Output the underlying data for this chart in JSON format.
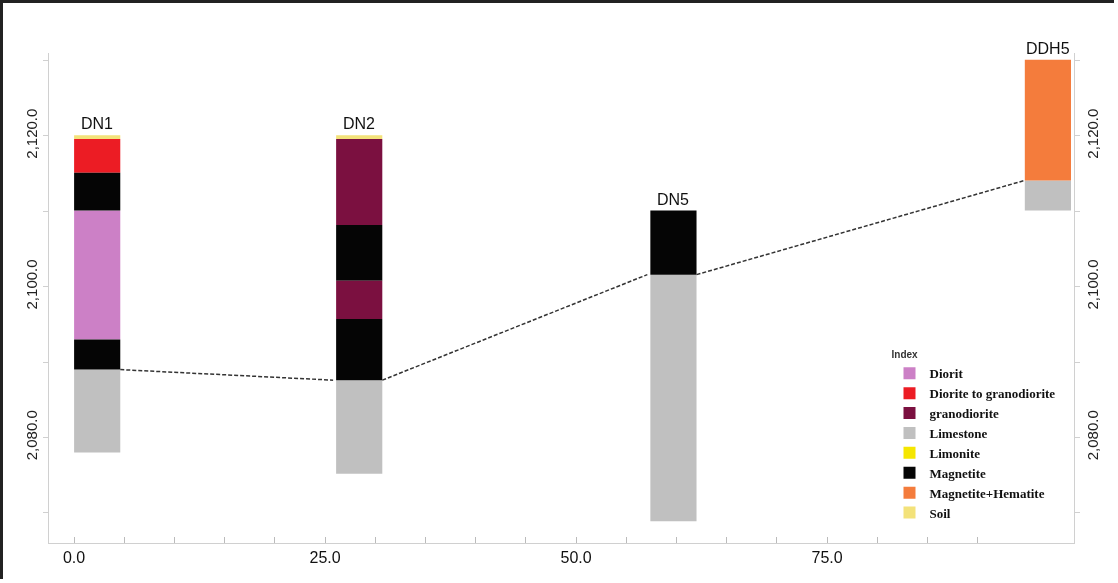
{
  "chart_data": {
    "type": "bar",
    "x": [
      2.3,
      28.4,
      59.7,
      97.0
    ],
    "series": [
      {
        "name": "Diorit",
        "color": "#cc80c6",
        "values": [
          17.1,
          null,
          null,
          null
        ],
        "base": [
          2093.0,
          null,
          null,
          null
        ]
      },
      {
        "name": "Diorite to granodiorite",
        "color": "#ec1c24",
        "values": [
          4.5,
          null,
          null,
          null
        ],
        "base": [
          2115.1,
          null,
          null,
          null
        ]
      },
      {
        "name": "granodiorite",
        "color": "#7b1040",
        "values": [
          null,
          11.4,
          null,
          null
        ],
        "base": [
          null,
          2108.2,
          null,
          null
        ]
      },
      {
        "name": "Limestone",
        "color": "#c0c0c0",
        "values": [
          11.0,
          12.4,
          32.7,
          4.0
        ],
        "base": [
          2078.0,
          2075.2,
          2068.9,
          2110.1
        ]
      },
      {
        "name": "Limonite",
        "color": "#f5e600",
        "values": [
          null,
          null,
          null,
          null
        ],
        "base": [
          null,
          null,
          null,
          null
        ]
      },
      {
        "name": "Magnetite",
        "color": "#050505",
        "values": [
          5.0,
          7.4,
          8.5,
          null
        ],
        "base": [
          2110.1,
          2100.8,
          2101.6,
          null
        ]
      },
      {
        "name": "Magnetite+Hematite",
        "color": "#f47c3c",
        "values": [
          null,
          null,
          null,
          16.0
        ],
        "base": [
          null,
          null,
          null,
          2114.1
        ]
      },
      {
        "name": "Soil",
        "color": "#f3e27a",
        "values": [
          0.5,
          0.5,
          null,
          null
        ],
        "base": [
          2119.6,
          2119.6,
          null,
          null
        ]
      },
      {
        "color": "#7b1040",
        "values": [
          null,
          5.1,
          null,
          null
        ],
        "base": [
          null,
          2095.7,
          null,
          null
        ]
      },
      {
        "color": "#050505",
        "values": [
          4.0,
          8.1,
          null,
          null
        ],
        "base": [
          2089.0,
          2087.6,
          null,
          null
        ]
      },
      {
        "type": "line",
        "color": "#333333",
        "line_style": "dashed",
        "x": [
          4.6,
          25.8
        ],
        "values": [
          2089.0,
          2087.6
        ]
      },
      {
        "type": "line",
        "color": "#333333",
        "line_style": "dashed",
        "x": [
          30.7,
          57.1
        ],
        "values": [
          2087.6,
          2101.6
        ]
      },
      {
        "type": "line",
        "color": "#333333",
        "line_style": "dashed",
        "x": [
          62.0,
          94.7
        ],
        "values": [
          2101.6,
          2114.1
        ]
      }
    ],
    "marker": "none",
    "annotations": [
      {
        "text": "DN1",
        "x": 2.3,
        "y": 2120.1
      },
      {
        "text": "DN2",
        "x": 28.4,
        "y": 2120.1
      },
      {
        "text": "DN5",
        "x": 59.7,
        "y": 2110.1
      },
      {
        "text": "DDH5",
        "x": 97.0,
        "y": 2130.1
      }
    ],
    "legend_title": "Index",
    "legend": "bottom right",
    "grid": false,
    "xlim": [
      -2.5,
      99.6
    ],
    "xticks": [
      {
        "value": 0,
        "label": "0.0"
      },
      {
        "value": 5,
        "label": null
      },
      {
        "value": 10,
        "label": null
      },
      {
        "value": 15,
        "label": null
      },
      {
        "value": 20,
        "label": null
      },
      {
        "value": 25,
        "label": "25.0"
      },
      {
        "value": 30,
        "label": null
      },
      {
        "value": 35,
        "label": null
      },
      {
        "value": 40,
        "label": null
      },
      {
        "value": 45,
        "label": null
      },
      {
        "value": 50,
        "label": "50.0"
      },
      {
        "value": 55,
        "label": null
      },
      {
        "value": 60,
        "label": null
      },
      {
        "value": 65,
        "label": null
      },
      {
        "value": 70,
        "label": null
      },
      {
        "value": 75,
        "label": "75.0"
      },
      {
        "value": 80,
        "label": null
      },
      {
        "value": 85,
        "label": null
      },
      {
        "value": 90,
        "label": null
      }
    ],
    "ylim": [
      2066,
      2131
    ],
    "yticks": [
      {
        "value": 2070,
        "label": null
      },
      {
        "value": 2080,
        "label": "2,080.0"
      },
      {
        "value": 2090,
        "label": null
      },
      {
        "value": 2100,
        "label": "2,100.0"
      },
      {
        "value": 2110,
        "label": null
      },
      {
        "value": 2120,
        "label": "2,120.0"
      },
      {
        "value": 2130,
        "label": null
      }
    ],
    "y2lim": [
      2066,
      2131
    ],
    "y2ticks": [
      {
        "value": 2070,
        "label": null
      },
      {
        "value": 2080,
        "label": "2,080.0"
      },
      {
        "value": 2090,
        "label": null
      },
      {
        "value": 2100,
        "label": "2,100.0"
      },
      {
        "value": 2110,
        "label": null
      },
      {
        "value": 2120,
        "label": "2,120.0"
      },
      {
        "value": 2130,
        "label": null
      }
    ]
  }
}
